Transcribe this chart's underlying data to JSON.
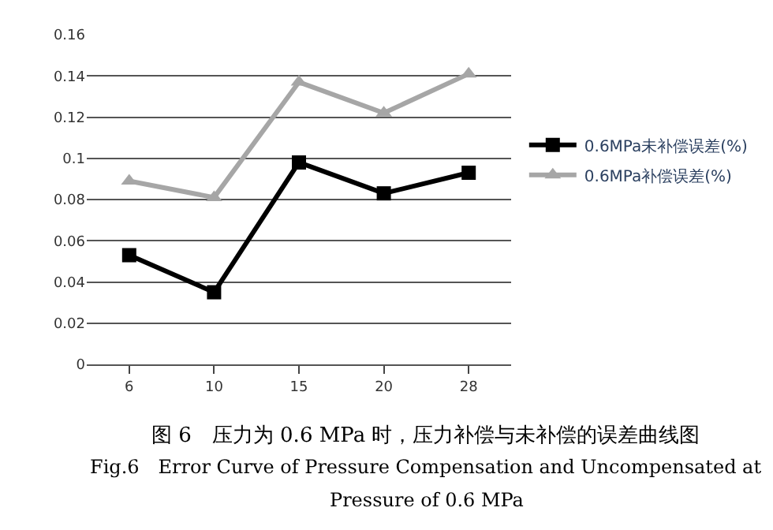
{
  "chart_data": {
    "type": "line",
    "categories": [
      "6",
      "10",
      "15",
      "20",
      "28"
    ],
    "series": [
      {
        "name": "0.6MPa未补偿误差(%)",
        "color": "#000000",
        "marker": "square",
        "values": [
          0.053,
          0.035,
          0.098,
          0.083,
          0.093
        ]
      },
      {
        "name": "0.6MPa补偿误差(%)",
        "color": "#a6a6a6",
        "marker": "triangle",
        "values": [
          0.089,
          0.081,
          0.137,
          0.122,
          0.141
        ]
      }
    ],
    "ylim": [
      0,
      0.16
    ],
    "yticks": [
      0,
      0.02,
      0.04,
      0.06,
      0.08,
      0.1,
      0.12,
      0.14,
      0.16
    ],
    "grid": "y",
    "legend": "right",
    "annotations": [
      "图 6　压力为 0.6 MPa 时，压力补偿与未补偿的误差曲线图",
      "Fig.6　Error Curve of Pressure Compensation and Uncompensated at",
      "Pressure of 0.6 MPa"
    ]
  }
}
